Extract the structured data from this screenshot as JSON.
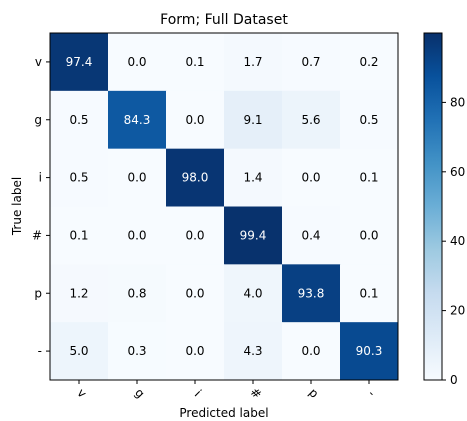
{
  "chart_data": {
    "type": "heatmap",
    "title": "Form; Full Dataset",
    "xlabel": "Predicted label",
    "ylabel": "True label",
    "x_categories": [
      "v",
      "g",
      "i",
      "#",
      "p",
      "-"
    ],
    "y_categories": [
      "v",
      "g",
      "i",
      "#",
      "p",
      "-"
    ],
    "values": [
      [
        97.4,
        0.0,
        0.1,
        1.7,
        0.7,
        0.2
      ],
      [
        0.5,
        84.3,
        0.0,
        9.1,
        5.6,
        0.5
      ],
      [
        0.5,
        0.0,
        98.0,
        1.4,
        0.0,
        0.1
      ],
      [
        0.1,
        0.0,
        0.0,
        99.4,
        0.4,
        0.0
      ],
      [
        1.2,
        0.8,
        0.0,
        4.0,
        93.8,
        0.1
      ],
      [
        5.0,
        0.3,
        0.0,
        4.3,
        0.0,
        90.3
      ]
    ],
    "value_labels": [
      [
        "97.4",
        "0.0",
        "0.1",
        "1.7",
        "0.7",
        "0.2"
      ],
      [
        "0.5",
        "84.3",
        "0.0",
        "9.1",
        "5.6",
        "0.5"
      ],
      [
        "0.5",
        "0.0",
        "98.0",
        "1.4",
        "0.0",
        "0.1"
      ],
      [
        "0.1",
        "0.0",
        "0.0",
        "99.4",
        "0.4",
        "0.0"
      ],
      [
        "1.2",
        "0.8",
        "0.0",
        "4.0",
        "93.8",
        "0.1"
      ],
      [
        "5.0",
        "0.3",
        "0.0",
        "4.3",
        "0.0",
        "90.3"
      ]
    ],
    "colorbar": {
      "range": [
        0,
        100
      ],
      "ticks": [
        0,
        20,
        40,
        60,
        80
      ],
      "tick_labels": [
        "0",
        "20",
        "40",
        "60",
        "80"
      ]
    },
    "colormap": "Blues",
    "colors": {
      "low": "#f7fbff",
      "high": "#08306b"
    },
    "grid": false,
    "xtick_rotation_deg": 45
  }
}
